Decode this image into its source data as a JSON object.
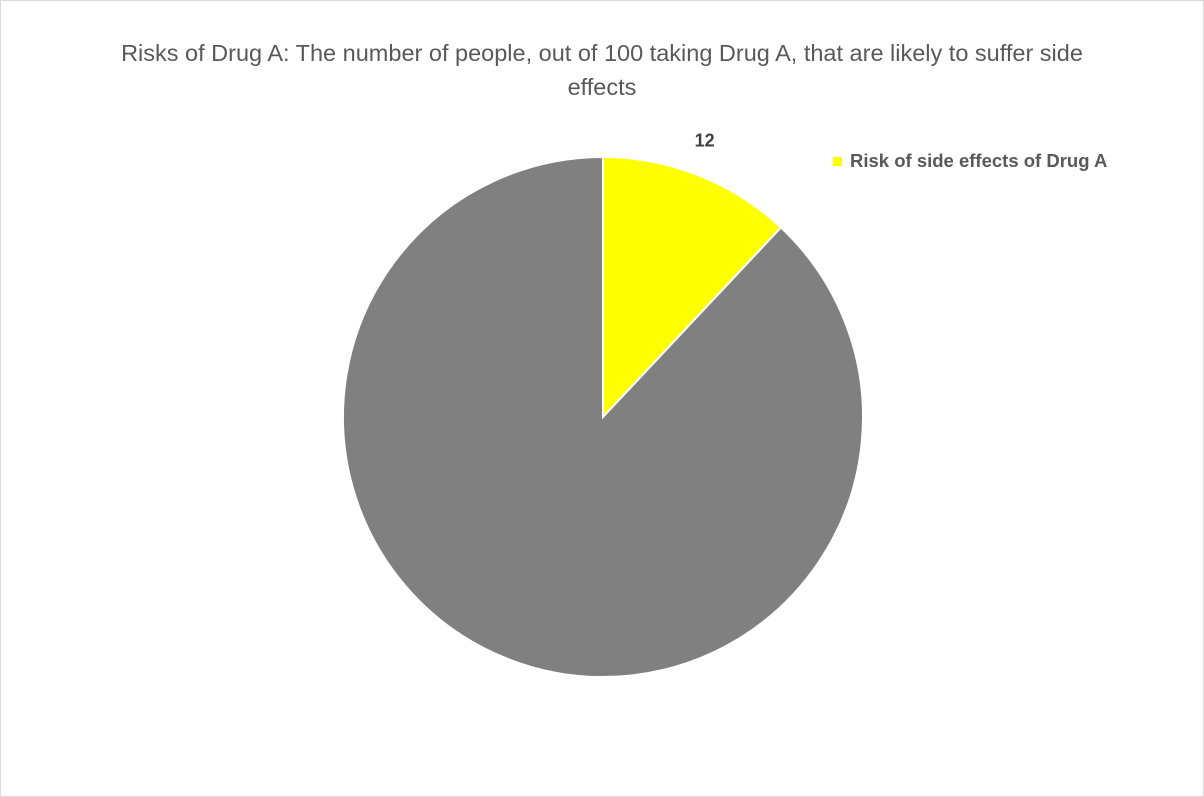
{
  "chart_data": {
    "type": "pie",
    "title": "Risks of Drug A: The number of people, out of 100 taking Drug A, that are likely to suffer side effects",
    "slices": [
      {
        "label": "Risk of side effects of Drug A",
        "value": 12,
        "color": "#ffff00",
        "show_label": true,
        "in_legend": true
      },
      {
        "label": "",
        "value": 88,
        "color": "#808080",
        "show_label": false,
        "in_legend": false
      }
    ],
    "start_angle": "12 o'clock",
    "direction": "clockwise",
    "legend_position": "top-right",
    "slice_border_color": "#ffffff"
  },
  "legend": {
    "label": "Risk of side effects of Drug A",
    "color": "#ffff00"
  }
}
